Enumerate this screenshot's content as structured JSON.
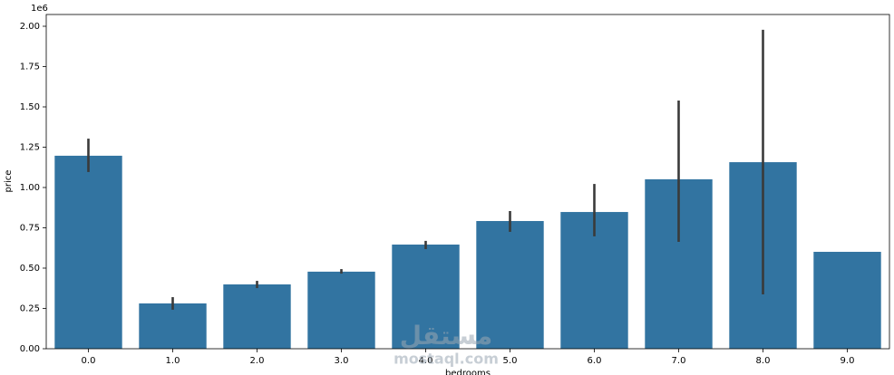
{
  "chart_data": {
    "type": "bar",
    "y_offset_label": "1e6",
    "xlabel": "bedrooms",
    "ylabel": "price",
    "categories": [
      "0.0",
      "1.0",
      "2.0",
      "3.0",
      "4.0",
      "5.0",
      "6.0",
      "7.0",
      "8.0",
      "9.0"
    ],
    "values": [
      1.197,
      0.281,
      0.399,
      0.478,
      0.646,
      0.792,
      0.848,
      1.051,
      1.157,
      0.601
    ],
    "ci_low": [
      1.096,
      0.242,
      0.376,
      0.466,
      0.618,
      0.725,
      0.697,
      0.663,
      0.337,
      null
    ],
    "ci_high": [
      1.303,
      0.32,
      0.421,
      0.494,
      0.669,
      0.854,
      1.022,
      1.539,
      1.978,
      null
    ],
    "color": "#3274a1",
    "error_color": "#3a3a3a",
    "ylim": [
      0,
      2.073
    ],
    "yticks": [
      {
        "value": 0,
        "label": "0.00"
      },
      {
        "value": 0.25,
        "label": "0.25"
      },
      {
        "value": 0.5,
        "label": "0.50"
      },
      {
        "value": 0.75,
        "label": "0.75"
      },
      {
        "value": 1,
        "label": "1.00"
      },
      {
        "value": 1.25,
        "label": "1.25"
      },
      {
        "value": 1.5,
        "label": "1.50"
      },
      {
        "value": 1.75,
        "label": "1.75"
      },
      {
        "value": 2,
        "label": "2.00"
      }
    ],
    "watermark": [
      "مستقل",
      "mostaql.com"
    ]
  }
}
